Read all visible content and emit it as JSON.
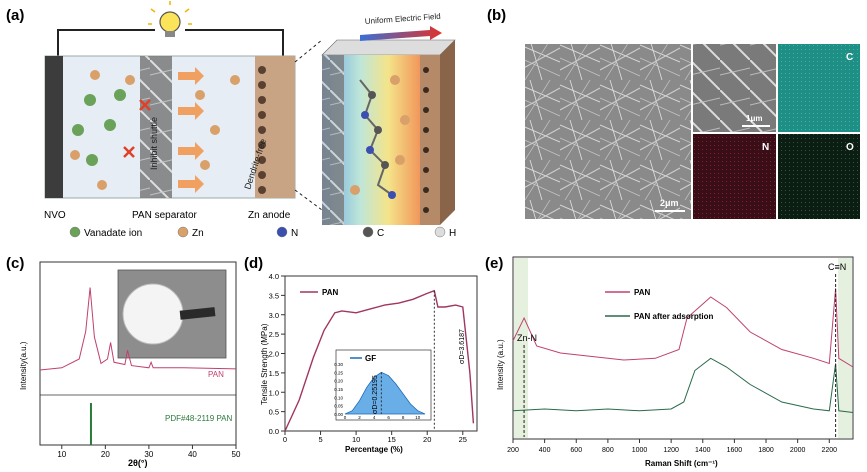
{
  "panels": {
    "a": {
      "label": "(a)",
      "nvo": "NVO",
      "separator": "PAN separator",
      "anode": "Zn anode",
      "inhibit": "Inhibit shuttle",
      "dendrite": "Dendrite-free",
      "field": "Uniform Electric Field",
      "legend": [
        {
          "text": "Vanadate ion",
          "color": "#6aa25a"
        },
        {
          "text": "Zn",
          "color": "#d9a06a"
        },
        {
          "text": "N",
          "color": "#3b4fb0"
        },
        {
          "text": "C",
          "color": "#555555"
        },
        {
          "text": "H",
          "color": "#dddddd"
        }
      ]
    },
    "b": {
      "label": "(b)",
      "scale_main": "2μm",
      "scale_inset": "1μm",
      "map_c": "C",
      "map_n": "N",
      "map_o": "O",
      "colors": {
        "c": "#1f8e84",
        "n": "#5a1520",
        "o": "#15301f"
      }
    },
    "c": {
      "label": "(c)",
      "series_label": "PAN",
      "ref_label": "PDF#48-2119 PAN",
      "ylabel": "Intensity(a.u.)",
      "xlabel": "2θ(°)",
      "xticks": [
        "10",
        "20",
        "30",
        "40",
        "50"
      ]
    },
    "d": {
      "label": "(d)",
      "legend": "PAN",
      "inset_legend": "GF",
      "ylabel": "Tensile Strength (MPa)",
      "xlabel": "Percentage (%)",
      "sigma_pan": "σD=3.6187",
      "sigma_gf": "σD=0.25195",
      "yticks": [
        "0.0",
        "0.5",
        "1.0",
        "1.5",
        "2.0",
        "2.5",
        "3.0",
        "3.5",
        "4.0"
      ],
      "xticks": [
        "0",
        "5",
        "10",
        "15",
        "20",
        "25"
      ],
      "inset_yticks": [
        "0.00",
        "0.05",
        "0.10",
        "0.15",
        "0.20",
        "0.25",
        "0.30"
      ],
      "inset_xticks": [
        "0",
        "2",
        "4",
        "6",
        "8",
        "10"
      ]
    },
    "e": {
      "label": "(e)",
      "legend1": "PAN",
      "legend2": "PAN after adsorption",
      "ann_znn": "Zn-N",
      "ann_cn": "C≡N",
      "ylabel": "Intensity (a.u.)",
      "xlabel": "Raman Shift (cm⁻¹)",
      "xticks": [
        "200",
        "400",
        "600",
        "800",
        "1000",
        "1200",
        "1400",
        "1600",
        "1800",
        "2000",
        "2200"
      ]
    }
  },
  "chart_data": [
    {
      "type": "line",
      "panel": "c",
      "xlim": [
        5,
        50
      ],
      "series": [
        {
          "name": "PAN",
          "x": [
            5,
            10,
            14,
            15.5,
            16.5,
            17.5,
            19,
            20.5,
            21.2,
            22,
            24.5,
            25.1,
            26,
            30,
            30.5,
            31,
            38,
            50
          ],
          "y": [
            0.2,
            0.22,
            0.3,
            0.55,
            0.95,
            0.5,
            0.26,
            0.3,
            0.45,
            0.27,
            0.25,
            0.38,
            0.24,
            0.22,
            0.27,
            0.22,
            0.22,
            0.21
          ]
        }
      ],
      "reference_peaks": [
        {
          "x": 16.7,
          "h": 1.0
        }
      ]
    },
    {
      "type": "line",
      "panel": "d",
      "xlim": [
        0,
        27
      ],
      "ylim": [
        0,
        4.0
      ],
      "series": [
        {
          "name": "PAN",
          "x": [
            0,
            2,
            4,
            5.5,
            7,
            8,
            10,
            12,
            14,
            16,
            18,
            20,
            21,
            21.5,
            22.5,
            24,
            25,
            26,
            26.5
          ],
          "y": [
            0,
            0.8,
            1.9,
            2.6,
            3.05,
            3.1,
            3.05,
            3.15,
            3.25,
            3.3,
            3.4,
            3.55,
            3.62,
            3.2,
            3.2,
            3.25,
            3.2,
            1.5,
            0.2
          ]
        },
        {
          "name": "GF",
          "x": [
            0,
            1,
            2,
            3,
            4,
            5,
            6,
            7,
            8,
            9,
            10,
            11
          ],
          "y": [
            0,
            0.02,
            0.08,
            0.16,
            0.22,
            0.25,
            0.23,
            0.18,
            0.12,
            0.06,
            0.02,
            0.0
          ]
        }
      ]
    },
    {
      "type": "line",
      "panel": "e",
      "xlim": [
        200,
        2350
      ],
      "series": [
        {
          "name": "PAN",
          "x": [
            200,
            270,
            350,
            500,
            700,
            900,
            1100,
            1250,
            1300,
            1350,
            1450,
            1550,
            1700,
            1900,
            2100,
            2200,
            2240,
            2260,
            2350
          ],
          "y": [
            0.55,
            0.68,
            0.52,
            0.48,
            0.46,
            0.44,
            0.45,
            0.5,
            0.68,
            0.72,
            0.8,
            0.74,
            0.6,
            0.5,
            0.45,
            0.42,
            0.85,
            0.45,
            0.4
          ]
        },
        {
          "name": "PAN after adsorption",
          "x": [
            200,
            400,
            600,
            800,
            1000,
            1200,
            1280,
            1350,
            1450,
            1550,
            1700,
            1900,
            2100,
            2200,
            2240,
            2260,
            2350
          ],
          "y": [
            0.15,
            0.16,
            0.15,
            0.16,
            0.15,
            0.16,
            0.2,
            0.38,
            0.45,
            0.4,
            0.3,
            0.2,
            0.16,
            0.15,
            0.42,
            0.15,
            0.14
          ]
        }
      ]
    }
  ]
}
